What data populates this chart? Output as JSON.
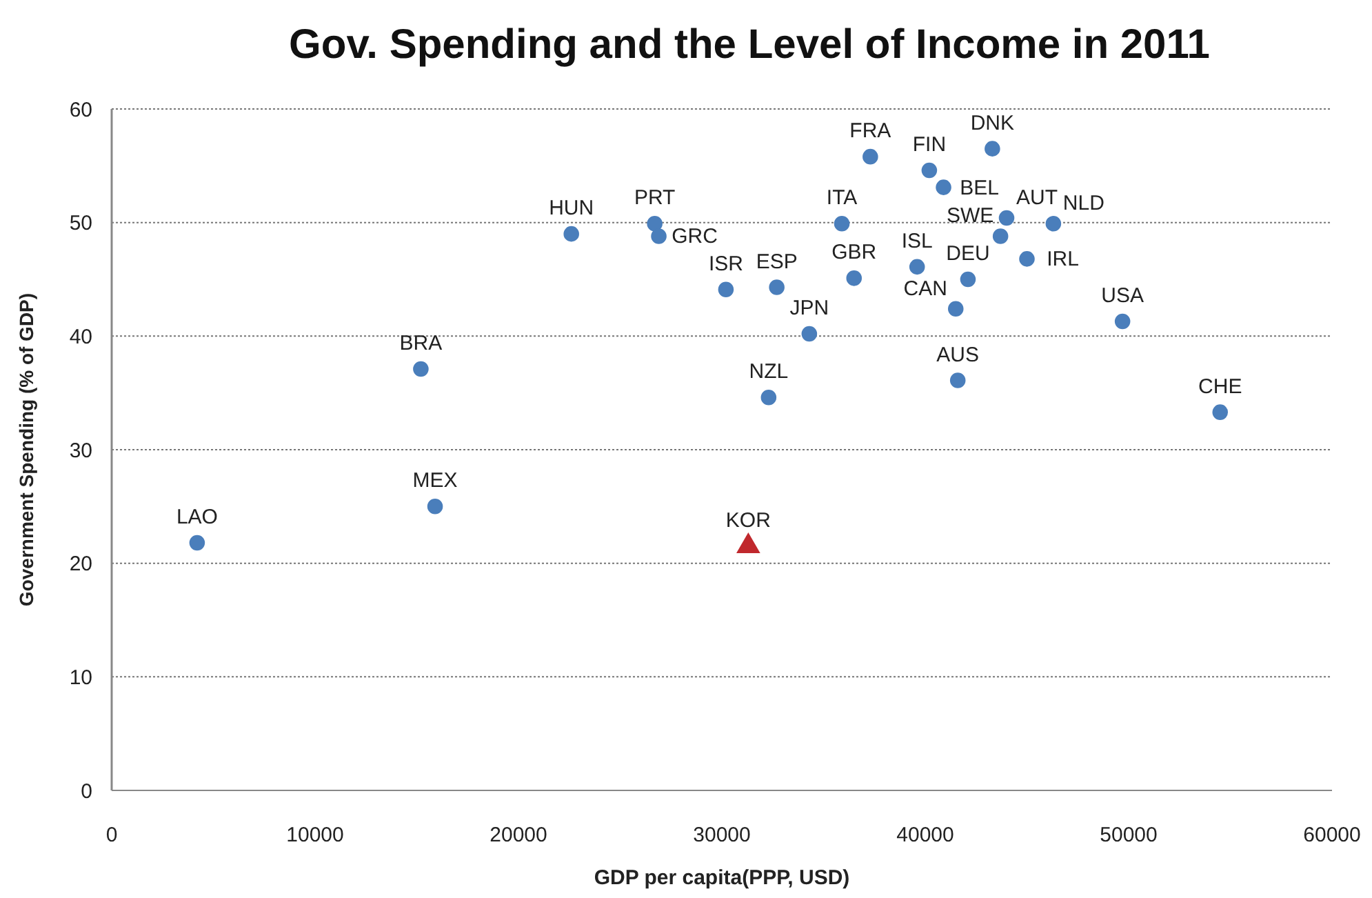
{
  "chart_data": {
    "type": "scatter",
    "title": "Gov. Spending and the Level of Income in 2011",
    "xlabel": "GDP per capita(PPP, USD)",
    "ylabel": "Government Spending (% of GDP)",
    "xlim": [
      0,
      60000
    ],
    "xticks": [
      0,
      10000,
      20000,
      30000,
      40000,
      50000,
      60000
    ],
    "ylim": [
      0,
      60
    ],
    "yticks": [
      0,
      10,
      20,
      30,
      40,
      50,
      60
    ],
    "grid": "y",
    "series": [
      {
        "color": "#4a7ebb",
        "marker": "circle",
        "x": [
          4200,
          15200,
          15900,
          22600,
          26700,
          26900,
          30200,
          32700,
          34300,
          32300,
          35900,
          36500,
          37300,
          39600,
          40200,
          40900,
          43300,
          42100,
          41500,
          41600,
          43700,
          44000,
          45000,
          46300,
          49700,
          54500
        ],
        "values": [
          21.8,
          37.1,
          25.0,
          49.0,
          49.9,
          48.8,
          44.1,
          44.3,
          40.2,
          34.6,
          49.9,
          45.1,
          55.8,
          46.1,
          54.6,
          53.1,
          56.5,
          45.0,
          42.4,
          36.1,
          48.8,
          50.4,
          46.8,
          49.9,
          41.3,
          33.3
        ]
      },
      {
        "color": "#c0282d",
        "marker": "triangle",
        "x": [
          31300
        ],
        "values": [
          21.5
        ]
      }
    ],
    "annotations": [
      {
        "text": "LAO",
        "x": 4200,
        "y": 21.8
      },
      {
        "text": "BRA",
        "x": 15200,
        "y": 37.1
      },
      {
        "text": "MEX",
        "x": 15900,
        "y": 25.0
      },
      {
        "text": "HUN",
        "x": 22600,
        "y": 49.0
      },
      {
        "text": "PRT",
        "x": 26700,
        "y": 49.9
      },
      {
        "text": "GRC",
        "x": 26900,
        "y": 48.8
      },
      {
        "text": "ISR",
        "x": 30200,
        "y": 44.1
      },
      {
        "text": "ESP",
        "x": 32700,
        "y": 44.3
      },
      {
        "text": "JPN",
        "x": 34300,
        "y": 40.2
      },
      {
        "text": "NZL",
        "x": 32300,
        "y": 34.6
      },
      {
        "text": "ITA",
        "x": 35900,
        "y": 49.9
      },
      {
        "text": "GBR",
        "x": 36500,
        "y": 45.1
      },
      {
        "text": "FRA",
        "x": 37300,
        "y": 55.8
      },
      {
        "text": "ISL",
        "x": 39600,
        "y": 46.1
      },
      {
        "text": "FIN",
        "x": 40200,
        "y": 54.6
      },
      {
        "text": "BEL",
        "x": 40900,
        "y": 53.1
      },
      {
        "text": "DNK",
        "x": 43300,
        "y": 56.5
      },
      {
        "text": "DEU",
        "x": 42100,
        "y": 45.0
      },
      {
        "text": "CAN",
        "x": 41500,
        "y": 42.4
      },
      {
        "text": "AUS",
        "x": 41600,
        "y": 36.1
      },
      {
        "text": "SWE",
        "x": 43700,
        "y": 48.8
      },
      {
        "text": "AUT",
        "x": 44000,
        "y": 50.4
      },
      {
        "text": "IRL",
        "x": 45000,
        "y": 46.8
      },
      {
        "text": "NLD",
        "x": 46300,
        "y": 49.9
      },
      {
        "text": "USA",
        "x": 49700,
        "y": 41.3
      },
      {
        "text": "CHE",
        "x": 54500,
        "y": 33.3
      },
      {
        "text": "KOR",
        "x": 31300,
        "y": 21.5
      }
    ]
  }
}
